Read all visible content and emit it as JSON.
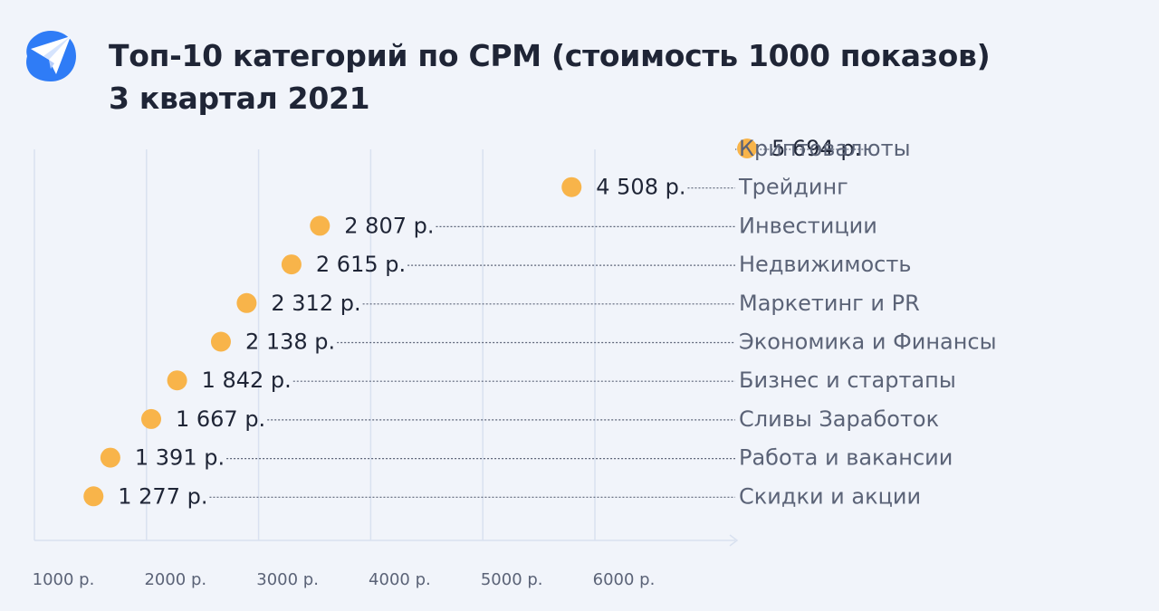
{
  "title_line1": "Топ-10 категорий по CPM (стоимость 1000 показов)",
  "title_line2": "3 квартал 2021",
  "logo_icon": "paper-plane-icon",
  "colors": {
    "background": "#f1f4fa",
    "dot": "#f8b44a",
    "logo": "#2f7cf6",
    "grid": "#d9e1f0",
    "leader": "#5b6377"
  },
  "chart_data": {
    "type": "scatter",
    "categories": [
      "Криптовалюты",
      "Трейдинг",
      "Инвестиции",
      "Недвижимость",
      "Маркетинг и PR",
      "Экономика и Финансы",
      "Бизнес и стартапы",
      "Сливы Заработок",
      "Работа и вакансии",
      "Скидки и акции"
    ],
    "values": [
      5694,
      4508,
      2807,
      2615,
      2312,
      2138,
      1842,
      1667,
      1391,
      1277
    ],
    "value_labels": [
      "5 694 р.",
      "4 508 р.",
      "2 807 р.",
      "2 615 р.",
      "2 312 р.",
      "2 138 р.",
      "1 842 р.",
      "1 667 р.",
      "1 391 р.",
      "1 277 р."
    ],
    "x_ticks": [
      1000,
      2000,
      3000,
      4000,
      5000,
      6000
    ],
    "x_tick_labels": [
      "1000 р.",
      "2000 р.",
      "3000 р.",
      "4000 р.",
      "5000 р.",
      "6000 р."
    ],
    "xlim": [
      1000,
      6000
    ],
    "grid": true,
    "xlabel": "",
    "ylabel": ""
  }
}
